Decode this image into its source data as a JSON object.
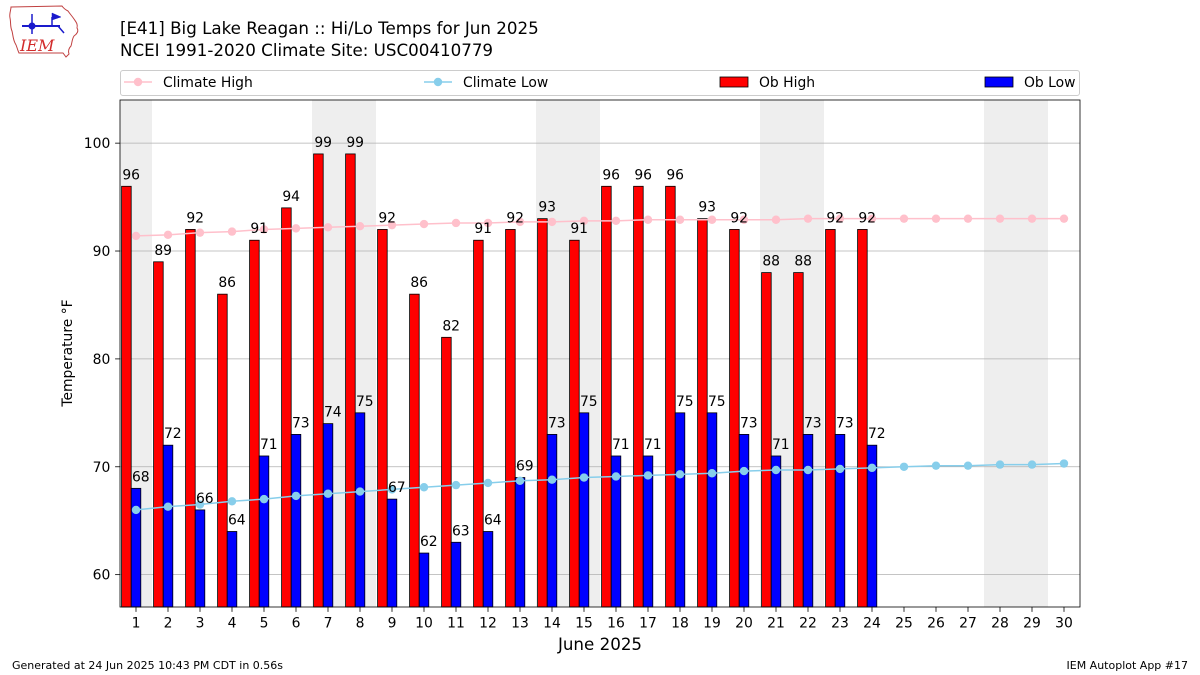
{
  "header": {
    "logo_text": "IEM"
  },
  "footer": {
    "generated": "Generated at 24 Jun 2025 10:43 PM CDT in 0.56s",
    "app": "IEM Autoplot App #17"
  },
  "colors": {
    "weekend_shading": "#eeeeee",
    "grid": "#b0b0b0"
  },
  "chart_data": {
    "type": "bar",
    "title": "[E41] Big Lake Reagan :: Hi/Lo Temps for Jun 2025",
    "subtitle": "NCEI 1991-2020 Climate Site: USC00410779",
    "xlabel": "June 2025",
    "ylabel": "Temperature °F",
    "x": [
      1,
      2,
      3,
      4,
      5,
      6,
      7,
      8,
      9,
      10,
      11,
      12,
      13,
      14,
      15,
      16,
      17,
      18,
      19,
      20,
      21,
      22,
      23,
      24,
      25,
      26,
      27,
      28,
      29,
      30
    ],
    "xlim": [
      0.5,
      30.5
    ],
    "ylim": [
      57,
      104
    ],
    "yticks": [
      60,
      70,
      80,
      90,
      100
    ],
    "grid": "horizontal",
    "legend": "top",
    "shaded_days": [
      1,
      7,
      8,
      14,
      15,
      21,
      22,
      28,
      29
    ],
    "series": [
      {
        "name": "Climate High",
        "kind": "line",
        "marker": "circle",
        "color": "#ffc0cb",
        "values": [
          91.4,
          91.5,
          91.7,
          91.8,
          92.0,
          92.1,
          92.2,
          92.3,
          92.4,
          92.5,
          92.6,
          92.6,
          92.7,
          92.7,
          92.8,
          92.8,
          92.9,
          92.9,
          92.9,
          92.9,
          92.9,
          93.0,
          93.0,
          93.0,
          93.0,
          93.0,
          93.0,
          93.0,
          93.0,
          93.0
        ]
      },
      {
        "name": "Climate Low",
        "kind": "line",
        "marker": "circle",
        "color": "#87ceeb",
        "values": [
          66.0,
          66.3,
          66.5,
          66.8,
          67.0,
          67.3,
          67.5,
          67.7,
          67.9,
          68.1,
          68.3,
          68.5,
          68.7,
          68.8,
          69.0,
          69.1,
          69.2,
          69.3,
          69.4,
          69.6,
          69.7,
          69.7,
          69.8,
          69.9,
          70.0,
          70.1,
          70.1,
          70.2,
          70.2,
          70.3
        ]
      },
      {
        "name": "Ob High",
        "kind": "bar",
        "color": "#ff0000",
        "data_labels": true,
        "values": [
          96,
          89,
          92,
          86,
          91,
          94,
          99,
          99,
          92,
          86,
          82,
          91,
          92,
          93,
          91,
          96,
          96,
          96,
          93,
          92,
          88,
          88,
          92,
          92,
          null,
          null,
          null,
          null,
          null,
          null
        ]
      },
      {
        "name": "Ob Low",
        "kind": "bar",
        "color": "#0000ff",
        "data_labels": true,
        "values": [
          68,
          72,
          66,
          64,
          71,
          73,
          74,
          75,
          67,
          62,
          63,
          64,
          69,
          73,
          75,
          71,
          71,
          75,
          75,
          73,
          71,
          73,
          73,
          72,
          null,
          null,
          null,
          null,
          null,
          null
        ]
      }
    ]
  }
}
